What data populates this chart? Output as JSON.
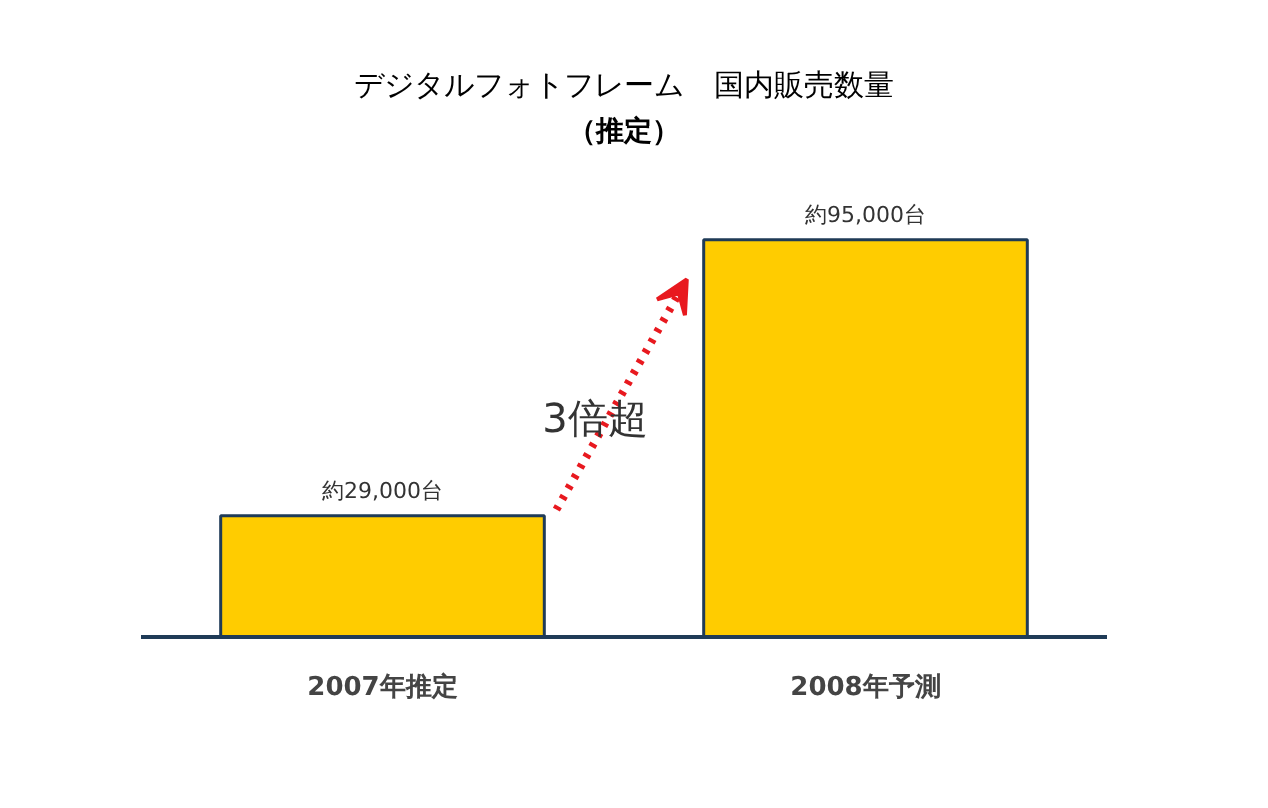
{
  "chart_data": {
    "type": "bar",
    "title": "デジタルフォトフレーム　国内販売数量",
    "subtitle": "（推定）",
    "categories": [
      "2007年推定",
      "2008年予測"
    ],
    "values": [
      29000,
      95000
    ],
    "value_labels": [
      "約29,000台",
      "約95,000台"
    ],
    "color": "#ffcc00",
    "annotations": [
      "3倍超"
    ]
  }
}
